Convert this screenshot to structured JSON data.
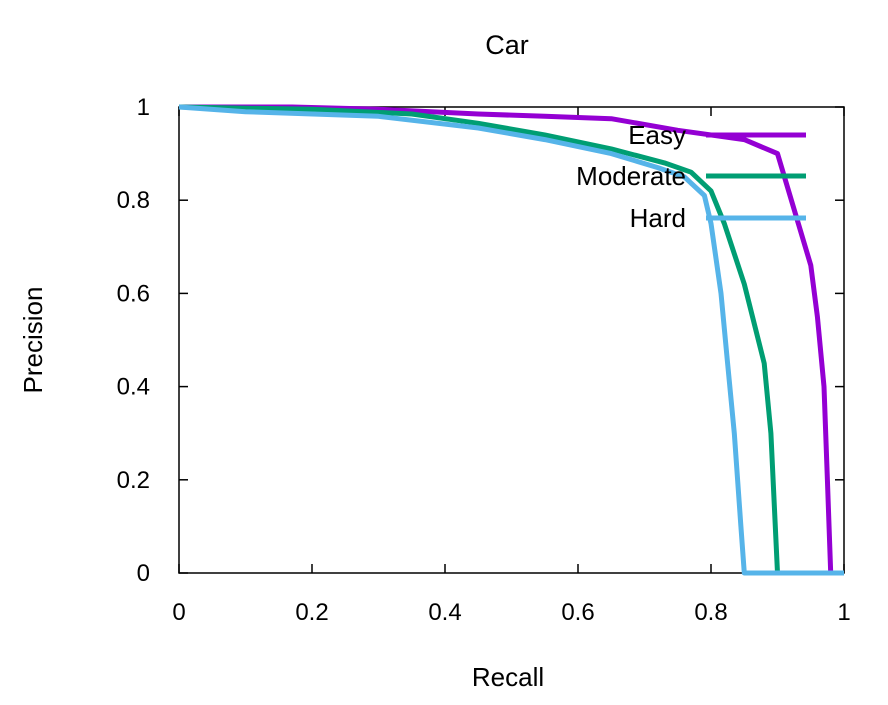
{
  "chart_data": {
    "type": "line",
    "title": "Car",
    "xlabel": "Recall",
    "ylabel": "Precision",
    "xlim": [
      0,
      1
    ],
    "ylim": [
      0,
      1
    ],
    "xticks": [
      "0",
      "0.2",
      "0.4",
      "0.6",
      "0.8",
      "1"
    ],
    "yticks": [
      "0",
      "0.2",
      "0.4",
      "0.6",
      "0.8",
      "1"
    ],
    "grid": false,
    "legend_position": "top-right",
    "series": [
      {
        "name": "Easy",
        "color": "#9400d3",
        "points": [
          [
            0,
            1
          ],
          [
            0.17,
            1
          ],
          [
            0.3,
            0.995
          ],
          [
            0.45,
            0.985
          ],
          [
            0.55,
            0.98
          ],
          [
            0.65,
            0.975
          ],
          [
            0.75,
            0.95
          ],
          [
            0.85,
            0.93
          ],
          [
            0.9,
            0.9
          ],
          [
            0.95,
            0.66
          ],
          [
            0.96,
            0.55
          ],
          [
            0.97,
            0.4
          ],
          [
            0.975,
            0.2
          ],
          [
            0.98,
            0.0
          ],
          [
            1,
            0
          ]
        ]
      },
      {
        "name": "Moderate",
        "color": "#009e73",
        "points": [
          [
            0,
            1
          ],
          [
            0.2,
            0.995
          ],
          [
            0.35,
            0.985
          ],
          [
            0.45,
            0.965
          ],
          [
            0.55,
            0.94
          ],
          [
            0.65,
            0.91
          ],
          [
            0.73,
            0.88
          ],
          [
            0.77,
            0.86
          ],
          [
            0.8,
            0.82
          ],
          [
            0.82,
            0.75
          ],
          [
            0.85,
            0.62
          ],
          [
            0.88,
            0.45
          ],
          [
            0.89,
            0.3
          ],
          [
            0.895,
            0.15
          ],
          [
            0.9,
            0
          ],
          [
            1,
            0
          ]
        ]
      },
      {
        "name": "Hard",
        "color": "#56b4e9",
        "points": [
          [
            0,
            1
          ],
          [
            0.1,
            0.99
          ],
          [
            0.3,
            0.98
          ],
          [
            0.45,
            0.955
          ],
          [
            0.55,
            0.93
          ],
          [
            0.65,
            0.9
          ],
          [
            0.72,
            0.87
          ],
          [
            0.76,
            0.85
          ],
          [
            0.79,
            0.81
          ],
          [
            0.8,
            0.75
          ],
          [
            0.815,
            0.6
          ],
          [
            0.825,
            0.45
          ],
          [
            0.835,
            0.3
          ],
          [
            0.845,
            0.1
          ],
          [
            0.85,
            0
          ],
          [
            1,
            0
          ]
        ]
      }
    ]
  }
}
